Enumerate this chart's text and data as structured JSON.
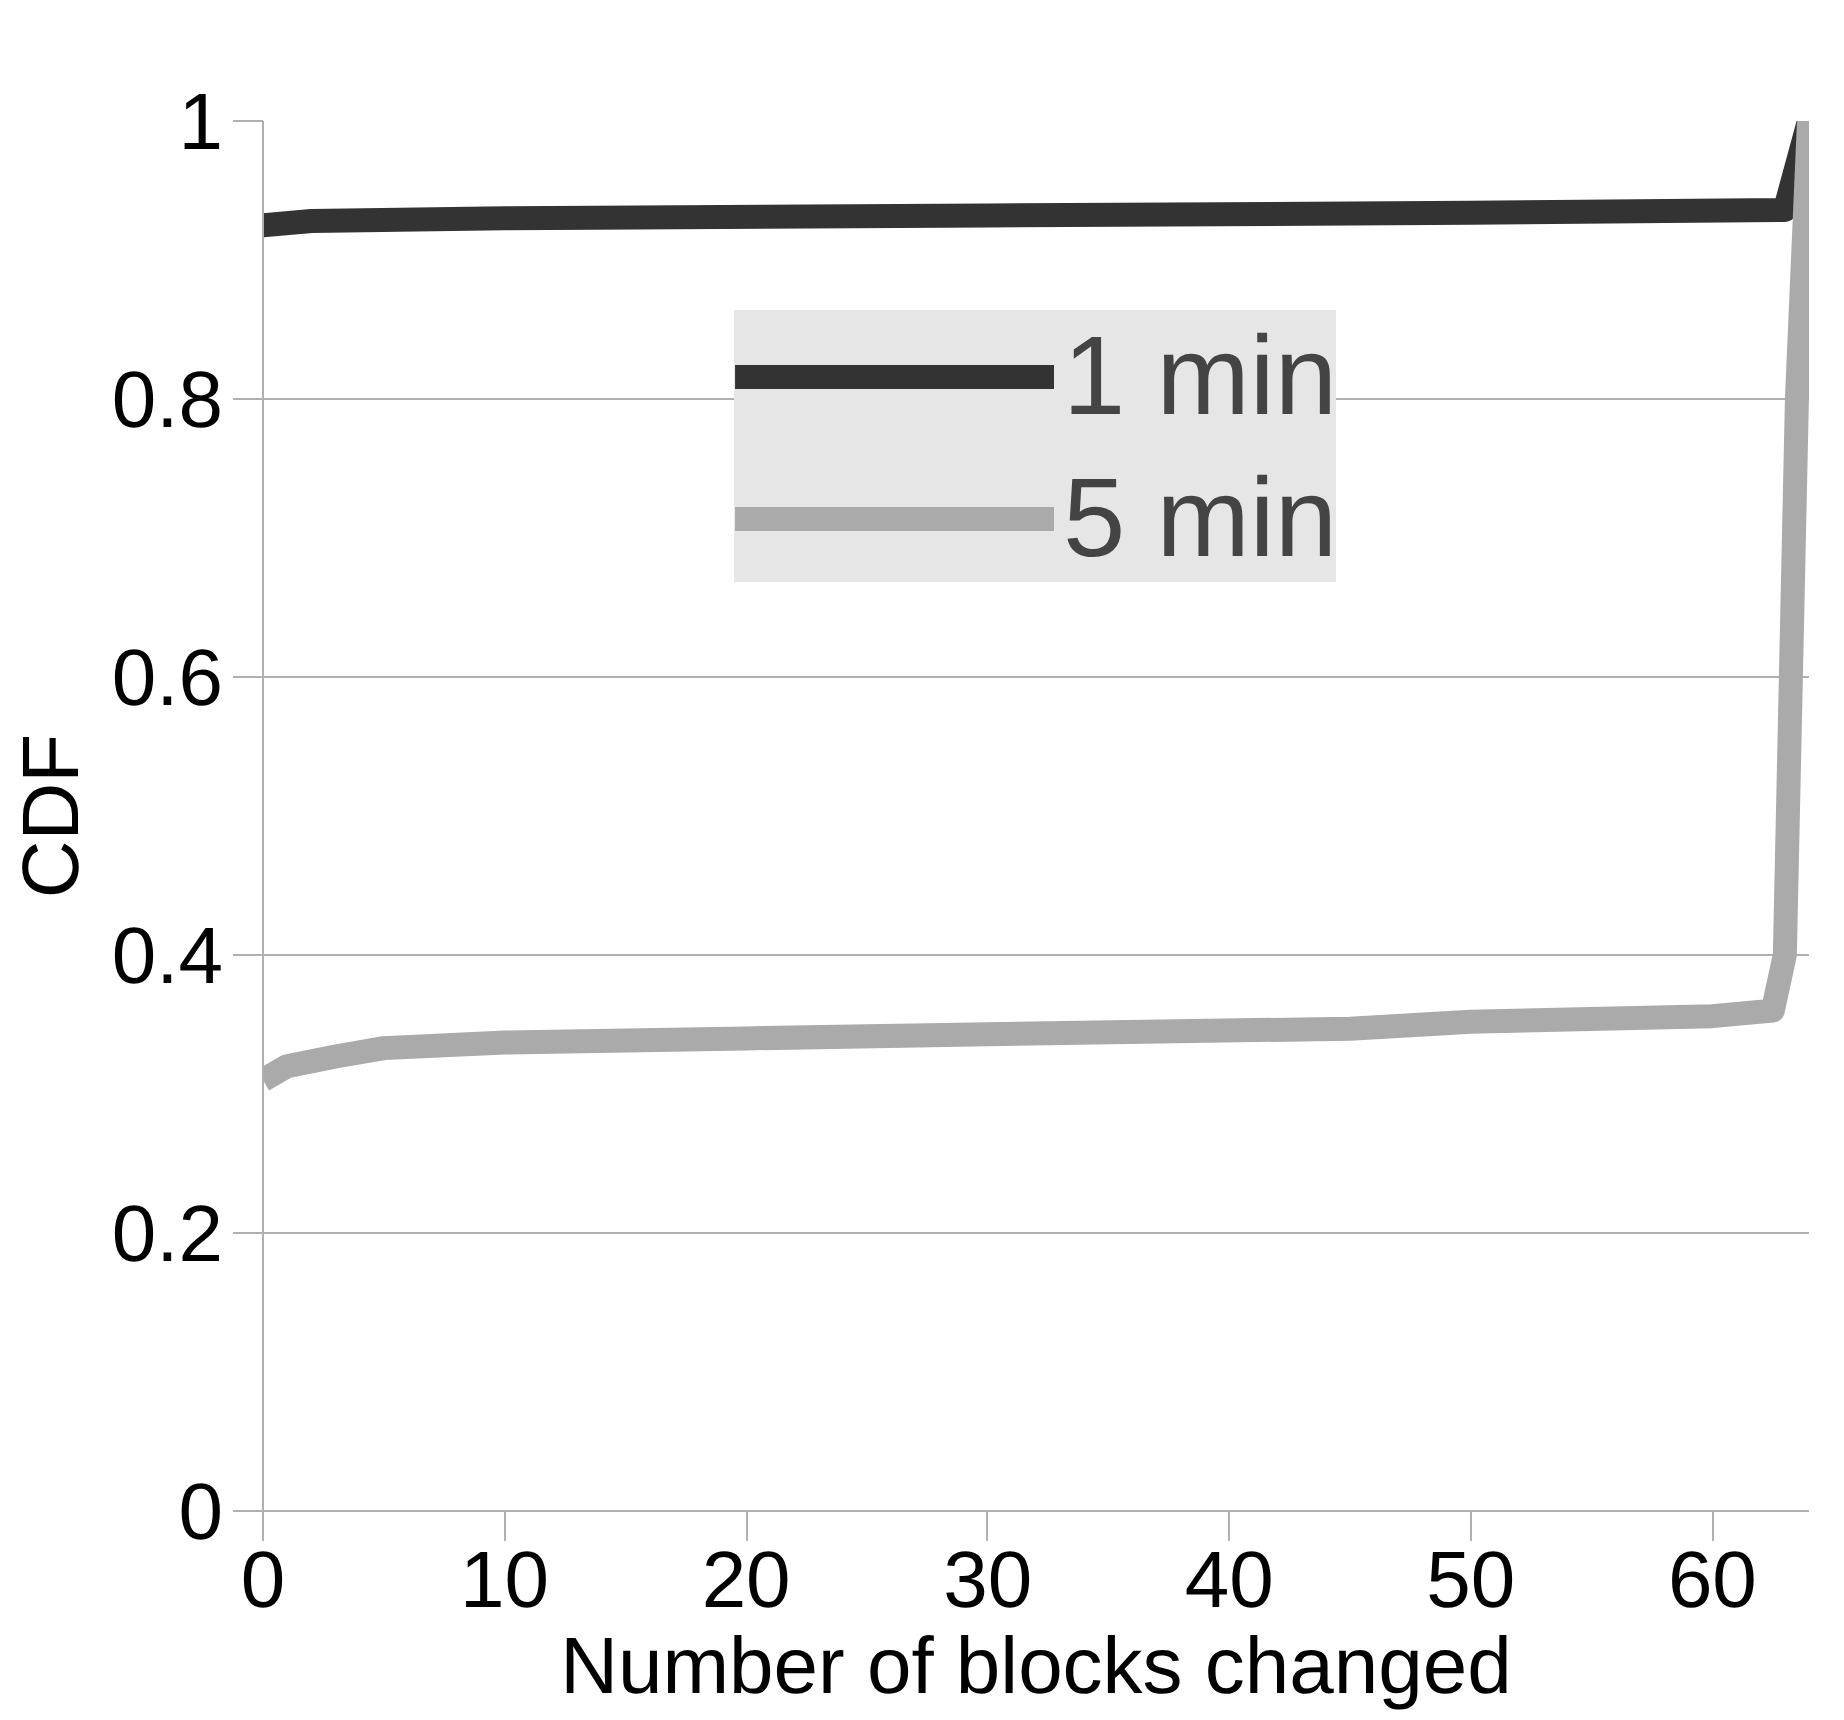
{
  "chart_data": {
    "type": "line",
    "xlabel": "Number of blocks changed",
    "ylabel": "CDF",
    "xlim": [
      0,
      64
    ],
    "ylim": [
      0,
      1
    ],
    "xticks": [
      0,
      10,
      20,
      30,
      40,
      50,
      60
    ],
    "yticks": [
      0,
      0.2,
      0.4,
      0.6,
      0.8,
      1
    ],
    "grid": "y",
    "legend": "top center",
    "marker": "none",
    "line_style": "solid",
    "series": [
      {
        "name": "1 min",
        "color": "#333333",
        "x": [
          0,
          2,
          10,
          30,
          50,
          63,
          64
        ],
        "values": [
          0.925,
          0.928,
          0.93,
          0.932,
          0.934,
          0.936,
          1
        ]
      },
      {
        "name": "5 min",
        "color": "#aaaaaa",
        "x": [
          0,
          1,
          3,
          5,
          10,
          20,
          30,
          45,
          50,
          60,
          62.5,
          63,
          63.5,
          64
        ],
        "values": [
          0.31,
          0.32,
          0.327,
          0.333,
          0.337,
          0.34,
          0.343,
          0.347,
          0.352,
          0.356,
          0.36,
          0.4,
          0.8,
          1
        ]
      }
    ]
  }
}
